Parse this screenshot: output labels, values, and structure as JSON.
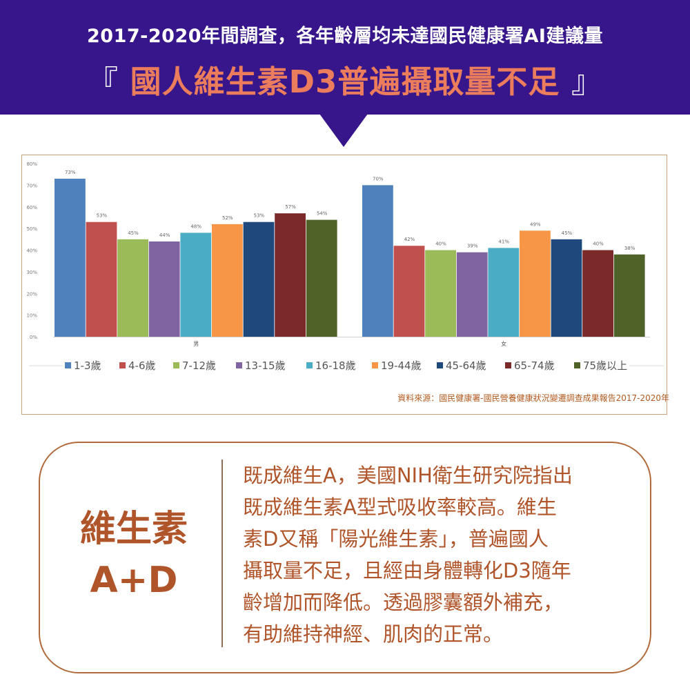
{
  "header": {
    "subtitle": "2017-2020年間調查，各年齡層均未達國民健康署AI建議量",
    "bracket_open": "『",
    "headline": "國人維生素D3普遍攝取量不足",
    "bracket_close": "』"
  },
  "colors": {
    "header_bg": "#36168a",
    "headline": "#ec7d5c",
    "accent": "#b0542a"
  },
  "chart_data": {
    "type": "bar",
    "groups": [
      "男",
      "女"
    ],
    "categories": [
      "1-3歲",
      "4-6歲",
      "7-12歲",
      "13-15歲",
      "16-18歲",
      "19-44歲",
      "45-64歲",
      "65-74歲",
      "75歲以上"
    ],
    "series": [
      {
        "name": "男",
        "values": [
          73,
          53,
          45,
          44,
          48,
          52,
          53,
          57,
          54
        ],
        "labels": [
          "73%",
          "53%",
          "45%",
          "44%",
          "48%",
          "52%",
          "53%",
          "57%",
          "54%"
        ]
      },
      {
        "name": "女",
        "values": [
          70,
          42,
          40,
          39,
          41,
          49,
          45,
          40,
          38
        ],
        "labels": [
          "70%",
          "42%",
          "40%",
          "39%",
          "41%",
          "49%",
          "45%",
          "40%",
          "38%"
        ]
      }
    ],
    "category_colors": [
      "#4f81bd",
      "#c0504d",
      "#9bbb59",
      "#8064a2",
      "#4bacc6",
      "#f79646",
      "#1f497d",
      "#7b2a2a",
      "#4f6228"
    ],
    "ylim": [
      0,
      80
    ],
    "yticks": [
      "0%",
      "10%",
      "20%",
      "30%",
      "40%",
      "50%",
      "60%",
      "70%",
      "80%"
    ],
    "legend_position": "bottom",
    "grid": false
  },
  "source": "資料來源：國民健康署-國民營養健康狀況變遷調查成果報告2017-2020年",
  "info": {
    "product_line1": "維生素",
    "product_line2": "A+D",
    "lines": [
      "既成維生A，美國NIH衛生研究院指出",
      "既成維生素A型式吸收率較高。維生",
      "素D又稱「陽光維生素」，普遍國人",
      "攝取量不足，且經由身體轉化D3隨年",
      "齡增加而降低。透過膠囊額外補充，",
      "有助維持神經、肌肉的正常。"
    ]
  }
}
